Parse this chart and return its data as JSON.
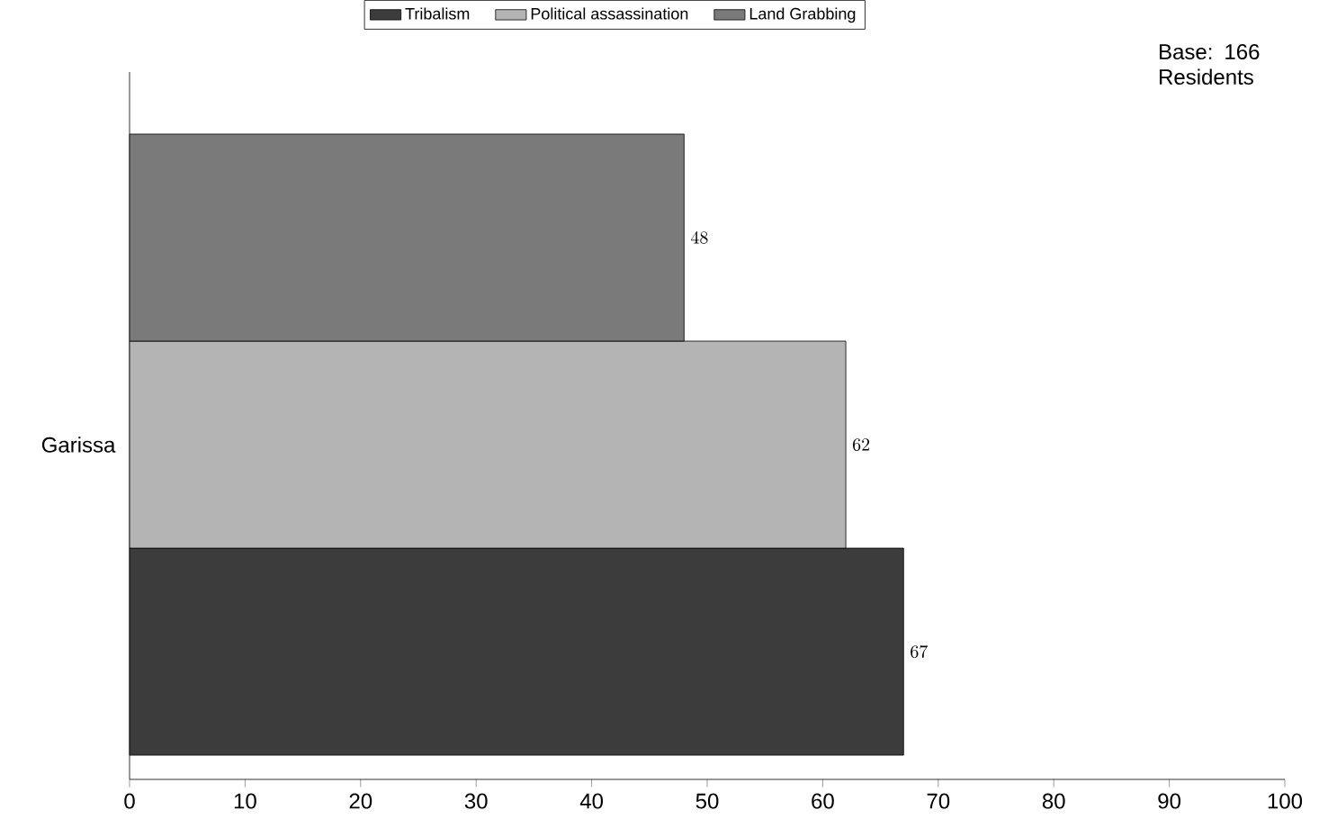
{
  "chart_data": {
    "type": "bar",
    "orientation": "horizontal",
    "categories": [
      "Garissa"
    ],
    "series": [
      {
        "name": "Tribalism",
        "color": "#3c3c3c",
        "values": [
          67
        ]
      },
      {
        "name": "Political assassination",
        "color": "#b4b4b4",
        "values": [
          62
        ]
      },
      {
        "name": "Land Grabbing",
        "color": "#7a7a7a",
        "values": [
          48
        ]
      }
    ],
    "xlim": [
      0,
      100
    ],
    "xticks": [
      0,
      10,
      20,
      30,
      40,
      50,
      60,
      70,
      80,
      90,
      100
    ],
    "data_labels": true,
    "legend": "top",
    "grid": false,
    "annotations": [
      "Base: 166 Residents"
    ]
  }
}
